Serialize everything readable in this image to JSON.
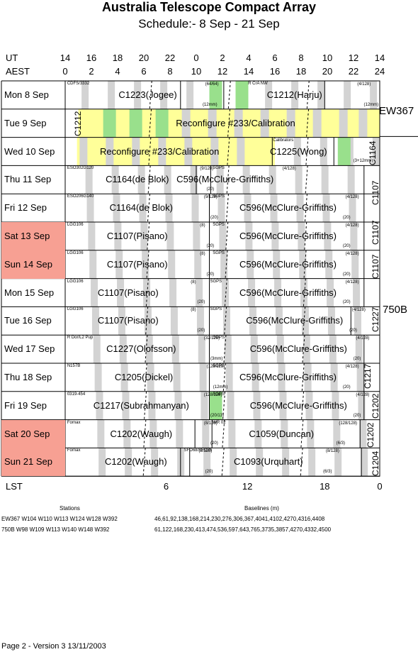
{
  "header": {
    "title": "Australia Telescope Compact Array",
    "subtitle": "Schedule:- 8  Sep - 21 Sep"
  },
  "axis": {
    "ut_label": "UT",
    "aest_label": "AEST",
    "ut_ticks": [
      "14",
      "16",
      "18",
      "20",
      "22",
      "0",
      "2",
      "4",
      "6",
      "8",
      "10",
      "12",
      "14"
    ],
    "aest_ticks": [
      "0",
      "2",
      "4",
      "6",
      "8",
      "10",
      "12",
      "14",
      "16",
      "18",
      "20",
      "22",
      "24"
    ],
    "lst_label": "LST",
    "lst_ticks": [
      "6",
      "12",
      "18",
      "0"
    ]
  },
  "days": [
    {
      "label": "Mon   8  Sep",
      "weekend": false
    },
    {
      "label": "Tue   9  Sep",
      "weekend": false
    },
    {
      "label": "Wed  10 Sep",
      "weekend": false
    },
    {
      "label": "Thu   11 Sep",
      "weekend": false
    },
    {
      "label": "Fri    12 Sep",
      "weekend": false
    },
    {
      "label": "Sat   13 Sep",
      "weekend": true
    },
    {
      "label": "Sun   14 Sep",
      "weekend": true
    },
    {
      "label": "Mon  15 Sep",
      "weekend": false
    },
    {
      "label": "Tue   16 Sep",
      "weekend": false
    },
    {
      "label": "Wed  17 Sep",
      "weekend": false
    },
    {
      "label": "Thu   18 Sep",
      "weekend": false
    },
    {
      "label": "Fri    19 Sep",
      "weekend": false
    },
    {
      "label": "Sat   20 Sep",
      "weekend": true
    },
    {
      "label": "Sun   21 Sep",
      "weekend": true
    }
  ],
  "programs": [
    {
      "row": 0,
      "text": "C1223(Jogee)",
      "src": "CDFS/3332",
      "cfg": "(64/64)",
      "extra": "(12mm)"
    },
    {
      "row": 0,
      "text": "C1212(Harju)",
      "src": "R CrA NW",
      "cfg": "(4/128)",
      "extra": "(12mm)"
    },
    {
      "row": 1,
      "text": "Reconfigure #233/Calibration"
    },
    {
      "row": 2,
      "text": "Reconfigure #233/Calibration"
    },
    {
      "row": 2,
      "text": "C1225(Wong)",
      "src": "Calibrators",
      "extra": "(3+12mm)"
    },
    {
      "row": 3,
      "text": "C1164(de Blok)",
      "src": "ESO302G120",
      "cfg": "(9/128)",
      "extra": "(20)"
    },
    {
      "row": 3,
      "text": "C596(McClure-Griffiths)",
      "src": "SGPS",
      "cfg": "(4/128)"
    },
    {
      "row": 4,
      "text": "C1164(de Blok)",
      "src": "ESO206G140",
      "cfg": "(9/128)",
      "extra": "(20)"
    },
    {
      "row": 4,
      "text": "C596(McClure-Griffiths)",
      "src": "SGPS",
      "cfg": "(4/128)",
      "extra": "(20)"
    },
    {
      "row": 5,
      "text": "C1107(Pisano)",
      "src": "LGG106",
      "cfg": "(8)",
      "extra": "(20)"
    },
    {
      "row": 5,
      "text": "C596(McClure-Griffiths)",
      "src": "SGPS",
      "cfg": "(4/128)",
      "extra": "(20)"
    },
    {
      "row": 6,
      "text": "C1107(Pisano)",
      "src": "LGG106",
      "cfg": "(8)",
      "extra": "(20)"
    },
    {
      "row": 6,
      "text": "C596(McClure-Griffiths)",
      "src": "SGPS",
      "cfg": "(4/128)",
      "extra": "(20)"
    },
    {
      "row": 7,
      "text": "C1107(Pisano)",
      "src": "LGG106",
      "cfg": "(8)",
      "extra": "(20)"
    },
    {
      "row": 7,
      "text": "C596(McClure-Griffiths)",
      "src": "SGPS",
      "cfg": "(4/128)",
      "extra": "(20)"
    },
    {
      "row": 8,
      "text": "C1107(Pisano)",
      "src": "LGG106",
      "cfg": "(8)",
      "extra": "(20)"
    },
    {
      "row": 8,
      "text": "C596(McClure-Griffiths)",
      "src": "SGPS",
      "cfg": "(4/128)",
      "extra": "(20)"
    },
    {
      "row": 9,
      "text": "C1227(Olofsson)",
      "src": "R Dor/L2 Pup",
      "cfg": "(32/128)",
      "extra": "(3mm)"
    },
    {
      "row": 9,
      "text": "C596(McClure-Griffiths)",
      "src": "SGPS",
      "cfg": "(4/128)",
      "extra": "(20)"
    },
    {
      "row": 10,
      "text": "C1205(Dickel)",
      "src": "N157B",
      "cfg": "(128/128)",
      "extra": "(12mm)"
    },
    {
      "row": 10,
      "text": "C596(McClure-Griffiths)",
      "src": "SGPS",
      "cfg": "(4/128)",
      "extra": "(20)"
    },
    {
      "row": 11,
      "text": "C1217(Subrahmanyan)",
      "src": "0319-454",
      "cfg": "(128/128)",
      "extra": "(20/13)"
    },
    {
      "row": 11,
      "text": "C596(McClure-Griffiths)",
      "src": "SGPS",
      "cfg": "(4/128)",
      "extra": "(20)"
    },
    {
      "row": 12,
      "text": "C1202(Waugh)",
      "src": "Fornax",
      "cfg": "(8/128)",
      "extra": "(20)"
    },
    {
      "row": 12,
      "text": "C1059(Duncan)",
      "src": "WR 02",
      "cfg": "(128/128)",
      "extra": "(6/3)"
    },
    {
      "row": 13,
      "text": "C1202(Waugh)",
      "src": "Fornax",
      "cfg": "(8/128)",
      "extra": "(20)"
    },
    {
      "row": 13,
      "text": "C1093(Urquhart)",
      "src": "SFO68/SFO76",
      "cfg": "(8/128)",
      "extra": "(6/3)"
    }
  ],
  "vertical_labels": [
    "C1212",
    "C1164",
    "C1107",
    "C1107",
    "C1107",
    "C1227",
    "C1217",
    "C1202",
    "C1202",
    "C1204"
  ],
  "configs": [
    "EW367",
    "750B"
  ],
  "footer": {
    "stations_heading": "Stations",
    "baselines_heading": "Baselines (m)",
    "rows": [
      {
        "stations": "EW367 W104  W110  W113  W124  W128  W392",
        "baselines": "46,61,92,138,168,214,230,276,306,367,4041,4102,4270,4316,4408"
      },
      {
        "stations": "750B    W98  W109  W113  W140  W148  W392",
        "baselines": "61,122,168,230,413,474,536,597,643,765,3735,3857,4270,4332,4500"
      }
    ],
    "page_info": "Page 2 - Version 3  13/11/2003"
  },
  "colors": {
    "weekend": "#f7a093",
    "shade": "#d3d3d3",
    "yellow": "#ffff99",
    "green": "#99e08c"
  }
}
